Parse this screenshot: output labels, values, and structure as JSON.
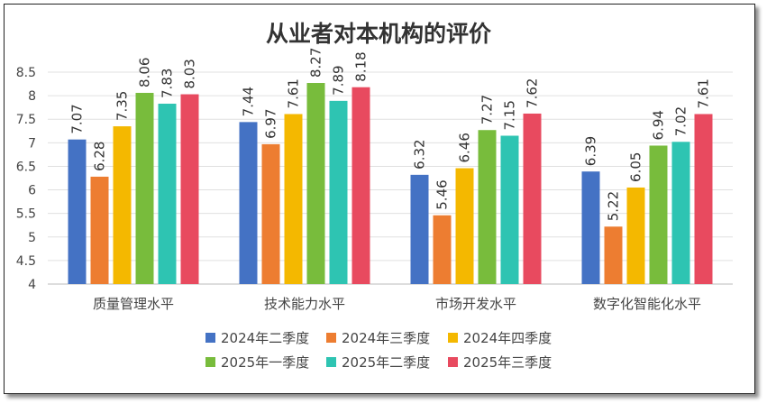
{
  "chart_data": {
    "type": "bar",
    "title": "从业者对本机构的评价",
    "xlabel": "",
    "ylabel": "",
    "ylim": [
      4,
      8.5
    ],
    "yticks": [
      "4",
      "4.5",
      "5",
      "5.5",
      "6",
      "6.5",
      "7",
      "7.5",
      "8",
      "8.5"
    ],
    "grid": true,
    "legend_position": "bottom",
    "categories": [
      "质量管理水平",
      "技术能力水平",
      "市场开发水平",
      "数字化智能化水平"
    ],
    "series": [
      {
        "name": "2024年二季度",
        "color": "#4472C4",
        "values": [
          7.07,
          7.44,
          6.32,
          6.39
        ]
      },
      {
        "name": "2024年三季度",
        "color": "#ED7D31",
        "values": [
          6.28,
          6.97,
          5.46,
          5.22
        ]
      },
      {
        "name": "2024年四季度",
        "color": "#F4B800",
        "values": [
          7.35,
          7.61,
          6.46,
          6.05
        ]
      },
      {
        "name": "2025年一季度",
        "color": "#78BC3C",
        "values": [
          8.06,
          8.27,
          7.27,
          6.94
        ]
      },
      {
        "name": "2025年二季度",
        "color": "#2EC4B2",
        "values": [
          7.83,
          7.89,
          7.15,
          7.02
        ]
      },
      {
        "name": "2025年三季度",
        "color": "#E84A5F",
        "values": [
          8.03,
          8.18,
          7.62,
          7.61
        ]
      }
    ]
  }
}
